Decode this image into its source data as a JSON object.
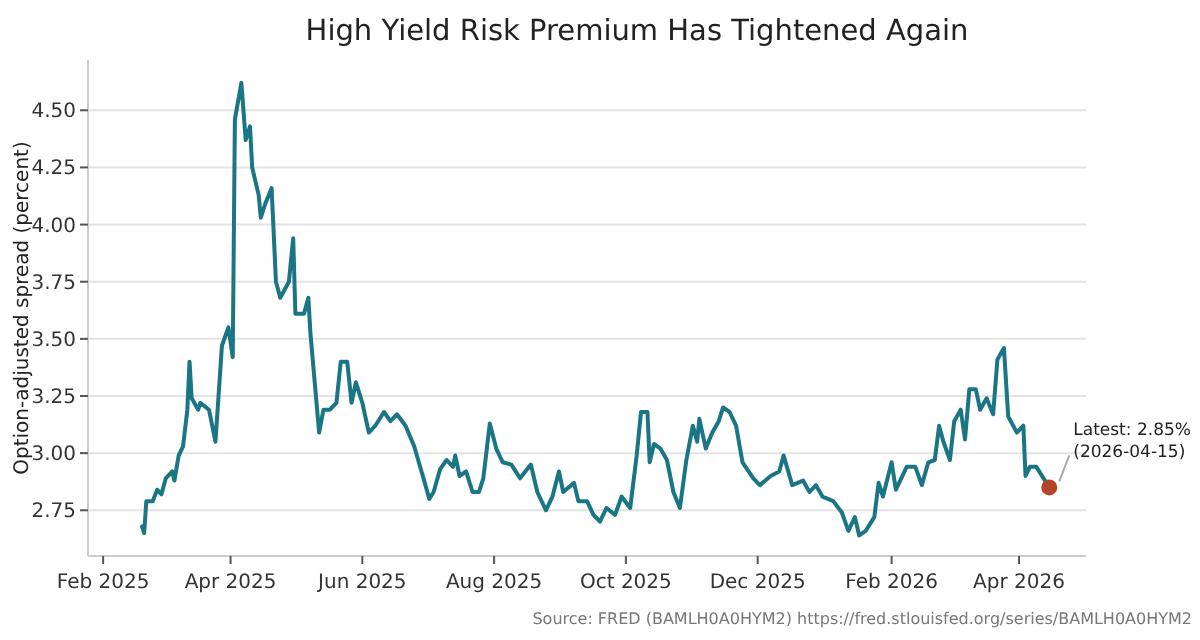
{
  "chart_data": {
    "type": "line",
    "title": "High Yield Risk Premium Has Tightened Again",
    "ylabel": "Option-adjusted spread (percent)",
    "xlim": [
      "2025-01-25",
      "2026-05-02"
    ],
    "ylim": [
      2.55,
      4.72
    ],
    "xticks": [
      {
        "value": "2025-02-01",
        "label": "Feb 2025"
      },
      {
        "value": "2025-04-01",
        "label": "Apr 2025"
      },
      {
        "value": "2025-06-01",
        "label": "Jun 2025"
      },
      {
        "value": "2025-08-01",
        "label": "Aug 2025"
      },
      {
        "value": "2025-10-01",
        "label": "Oct 2025"
      },
      {
        "value": "2025-12-01",
        "label": "Dec 2025"
      },
      {
        "value": "2026-02-01",
        "label": "Feb 2026"
      },
      {
        "value": "2026-04-01",
        "label": "Apr 2026"
      }
    ],
    "yticks": [
      {
        "value": 2.75,
        "label": "2.75"
      },
      {
        "value": 3,
        "label": "3.00"
      },
      {
        "value": 3.25,
        "label": "3.25"
      },
      {
        "value": 3.5,
        "label": "3.50"
      },
      {
        "value": 3.75,
        "label": "3.75"
      },
      {
        "value": 4,
        "label": "4.00"
      },
      {
        "value": 4.25,
        "label": "4.25"
      },
      {
        "value": 4.5,
        "label": "4.50"
      }
    ],
    "grid": "y",
    "line_style": "solid",
    "marker": "none",
    "series": [
      {
        "type": "line",
        "color": "#1a7585",
        "x": [
          "2025-02-19",
          "2025-02-20",
          "2025-02-21",
          "2025-02-24",
          "2025-02-26",
          "2025-02-28",
          "2025-03-02",
          "2025-03-05",
          "2025-03-06",
          "2025-03-08",
          "2025-03-10",
          "2025-03-12",
          "2025-03-13",
          "2025-03-14",
          "2025-03-17",
          "2025-03-18",
          "2025-03-22",
          "2025-03-25",
          "2025-03-28",
          "2025-03-31",
          "2025-04-02",
          "2025-04-03",
          "2025-04-06",
          "2025-04-08",
          "2025-04-10",
          "2025-04-11",
          "2025-04-14",
          "2025-04-15",
          "2025-04-17",
          "2025-04-20",
          "2025-04-22",
          "2025-04-24",
          "2025-04-28",
          "2025-04-30",
          "2025-05-01",
          "2025-05-05",
          "2025-05-07",
          "2025-05-08",
          "2025-05-12",
          "2025-05-14",
          "2025-05-17",
          "2025-05-20",
          "2025-05-22",
          "2025-05-25",
          "2025-05-27",
          "2025-05-29",
          "2025-06-01",
          "2025-06-04",
          "2025-06-07",
          "2025-06-11",
          "2025-06-14",
          "2025-06-17",
          "2025-06-21",
          "2025-06-25",
          "2025-06-29",
          "2025-07-02",
          "2025-07-04",
          "2025-07-07",
          "2025-07-10",
          "2025-07-13",
          "2025-07-14",
          "2025-07-16",
          "2025-07-19",
          "2025-07-22",
          "2025-07-25",
          "2025-07-27",
          "2025-07-30",
          "2025-08-02",
          "2025-08-05",
          "2025-08-09",
          "2025-08-13",
          "2025-08-18",
          "2025-08-21",
          "2025-08-25",
          "2025-08-28",
          "2025-08-31",
          "2025-09-02",
          "2025-09-07",
          "2025-09-09",
          "2025-09-13",
          "2025-09-16",
          "2025-09-19",
          "2025-09-22",
          "2025-09-26",
          "2025-09-29",
          "2025-10-03",
          "2025-10-06",
          "2025-10-08",
          "2025-10-11",
          "2025-10-12",
          "2025-10-14",
          "2025-10-17",
          "2025-10-20",
          "2025-10-23",
          "2025-10-26",
          "2025-10-29",
          "2025-11-01",
          "2025-11-03",
          "2025-11-04",
          "2025-11-07",
          "2025-11-10",
          "2025-11-13",
          "2025-11-15",
          "2025-11-18",
          "2025-11-21",
          "2025-11-24",
          "2025-11-29",
          "2025-12-02",
          "2025-12-07",
          "2025-12-11",
          "2025-12-13",
          "2025-12-17",
          "2025-12-22",
          "2025-12-25",
          "2025-12-28",
          "2025-12-31",
          "2026-01-05",
          "2026-01-09",
          "2026-01-12",
          "2026-01-15",
          "2026-01-17",
          "2026-01-20",
          "2026-01-24",
          "2026-01-26",
          "2026-01-28",
          "2026-02-01",
          "2026-02-03",
          "2026-02-08",
          "2026-02-12",
          "2026-02-15",
          "2026-02-18",
          "2026-02-21",
          "2026-02-23",
          "2026-02-25",
          "2026-02-28",
          "2026-03-02",
          "2026-03-05",
          "2026-03-07",
          "2026-03-09",
          "2026-03-12",
          "2026-03-14",
          "2026-03-17",
          "2026-03-20",
          "2026-03-22",
          "2026-03-25",
          "2026-03-27",
          "2026-03-31",
          "2026-04-03",
          "2026-04-04",
          "2026-04-06",
          "2026-04-09",
          "2026-04-15"
        ],
        "values": [
          2.68,
          2.65,
          2.79,
          2.79,
          2.84,
          2.82,
          2.89,
          2.92,
          2.88,
          2.99,
          3.03,
          3.19,
          3.4,
          3.24,
          3.19,
          3.22,
          3.19,
          3.05,
          3.47,
          3.55,
          3.42,
          4.46,
          4.62,
          4.37,
          4.43,
          4.25,
          4.13,
          4.03,
          4.09,
          4.16,
          3.75,
          3.68,
          3.75,
          3.94,
          3.61,
          3.61,
          3.68,
          3.52,
          3.09,
          3.19,
          3.19,
          3.22,
          3.4,
          3.4,
          3.22,
          3.31,
          3.22,
          3.09,
          3.12,
          3.18,
          3.14,
          3.17,
          3.12,
          3.03,
          2.9,
          2.8,
          2.83,
          2.93,
          2.97,
          2.94,
          2.99,
          2.9,
          2.92,
          2.83,
          2.83,
          2.89,
          3.13,
          3.02,
          2.96,
          2.95,
          2.89,
          2.95,
          2.83,
          2.75,
          2.81,
          2.92,
          2.83,
          2.87,
          2.79,
          2.79,
          2.73,
          2.7,
          2.76,
          2.73,
          2.81,
          2.76,
          2.99,
          3.18,
          3.18,
          2.96,
          3.04,
          3.02,
          2.97,
          2.83,
          2.76,
          2.97,
          3.12,
          3.05,
          3.15,
          3.02,
          3.09,
          3.14,
          3.2,
          3.18,
          3.12,
          2.96,
          2.89,
          2.86,
          2.9,
          2.92,
          2.99,
          2.86,
          2.88,
          2.83,
          2.86,
          2.81,
          2.79,
          2.74,
          2.66,
          2.72,
          2.64,
          2.66,
          2.72,
          2.87,
          2.81,
          2.96,
          2.84,
          2.94,
          2.94,
          2.86,
          2.96,
          2.97,
          3.12,
          3.05,
          2.97,
          3.14,
          3.19,
          3.06,
          3.28,
          3.28,
          3.19,
          3.24,
          3.17,
          3.41,
          3.46,
          3.16,
          3.09,
          3.12,
          2.9,
          2.94,
          2.94,
          2.85
        ]
      },
      {
        "type": "scatter",
        "color": "#b5452a",
        "marker": "circle",
        "x": [
          "2026-04-15"
        ],
        "values": [
          2.85
        ]
      }
    ],
    "annotations": [
      {
        "text": "Latest: 2.85%\n(2026-04-15)",
        "x": "2026-04-15",
        "y": 2.85
      },
      "Source: FRED (BAMLH0A0HYM2) https://fred.stlouisfed.org/series/BAMLH0A0HYM2"
    ]
  }
}
